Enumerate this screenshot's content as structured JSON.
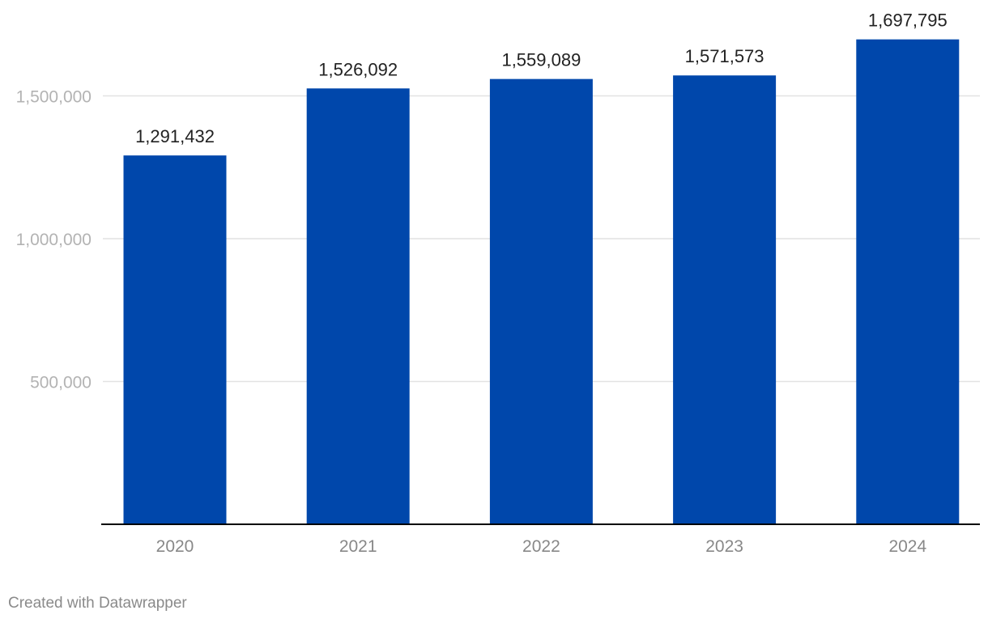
{
  "chart_data": {
    "type": "bar",
    "categories": [
      "2020",
      "2021",
      "2022",
      "2023",
      "2024"
    ],
    "values": [
      1291432,
      1526092,
      1559089,
      1571573,
      1697795
    ],
    "value_labels": [
      "1,291,432",
      "1,526,092",
      "1,559,089",
      "1,571,573",
      "1,697,795"
    ],
    "title": "",
    "xlabel": "",
    "ylabel": "",
    "ylim": [
      0,
      1700000
    ],
    "yticks": [
      500000,
      1000000,
      1500000
    ],
    "ytick_labels": [
      "500,000",
      "1,000,000",
      "1,500,000"
    ],
    "grid": true,
    "bar_color": "#0047ab",
    "grid_color": "#e2e2e2",
    "axis_color": "#000000"
  },
  "footer": {
    "credit": "Created with Datawrapper"
  }
}
